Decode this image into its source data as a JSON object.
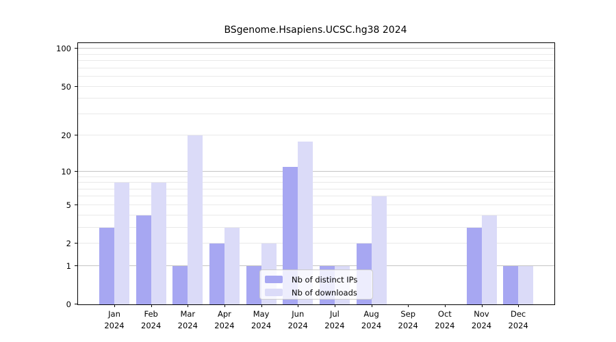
{
  "chart_data": {
    "type": "bar",
    "title": "BSgenome.Hsapiens.UCSC.hg38 2024",
    "categories": [
      "Jan",
      "Feb",
      "Mar",
      "Apr",
      "May",
      "Jun",
      "Jul",
      "Aug",
      "Sep",
      "Oct",
      "Nov",
      "Dec"
    ],
    "x_tick_year": "2024",
    "series": [
      {
        "name": "Nb of distinct IPs",
        "color": "#a7a7f2",
        "values": [
          3,
          4,
          1,
          2,
          1,
          11,
          1,
          2,
          0,
          0,
          3,
          1
        ]
      },
      {
        "name": "Nb of downloads",
        "color": "#dbdbf8",
        "values": [
          8,
          8,
          20,
          3,
          2,
          18,
          1,
          6,
          0,
          0,
          4,
          1
        ]
      }
    ],
    "y_ticks": [
      0,
      1,
      2,
      5,
      10,
      20,
      50,
      100
    ],
    "y_scale": "log1p",
    "ylim": [
      0,
      110
    ],
    "grid": "on",
    "legend_position": "lower-center"
  }
}
